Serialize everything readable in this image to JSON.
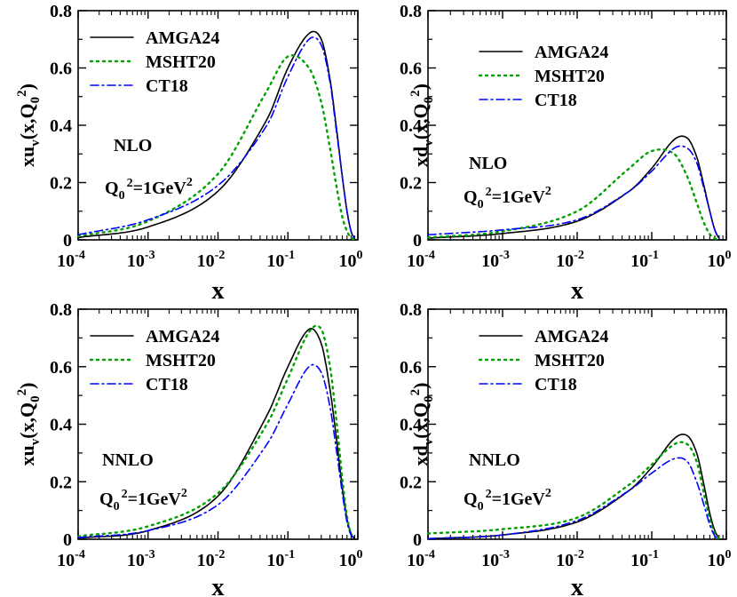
{
  "figure": {
    "series_styles": [
      {
        "name": "AMGA24",
        "color": "#000000",
        "dash": ""
      },
      {
        "name": "MSHT20",
        "color": "#00a000",
        "dash": "2 5"
      },
      {
        "name": "CT18",
        "color": "#0000ff",
        "dash": "9 4 2 4"
      }
    ]
  },
  "chart_data": [
    {
      "type": "line",
      "panel": "top-left",
      "order": "NLO",
      "scale_label": "=1GeV",
      "ylabel": "xu_v(x,Q_0^2)",
      "xlabel": "x",
      "xscale": "log",
      "xlim": [
        0.0001,
        1
      ],
      "ylim": [
        0,
        0.8
      ],
      "xticks": [
        {
          "base": "10",
          "exp": "-4"
        },
        {
          "base": "10",
          "exp": "-3"
        },
        {
          "base": "10",
          "exp": "-2"
        },
        {
          "base": "10",
          "exp": "-1"
        },
        {
          "base": "10",
          "exp": "0"
        }
      ],
      "yticks": [
        "0",
        "0.2",
        "0.4",
        "0.6",
        "0.8"
      ],
      "legend": [
        "AMGA24",
        "MSHT20",
        "CT18"
      ],
      "x": [
        0.0001,
        0.001,
        0.01,
        0.05,
        0.1,
        0.2,
        0.3,
        0.4,
        0.5,
        0.6,
        0.7,
        0.8,
        0.9
      ],
      "series": [
        {
          "name": "AMGA24",
          "values": [
            0.008,
            0.045,
            0.17,
            0.42,
            0.6,
            0.72,
            0.7,
            0.56,
            0.38,
            0.22,
            0.1,
            0.03,
            0.003
          ]
        },
        {
          "name": "MSHT20",
          "values": [
            0.012,
            0.065,
            0.23,
            0.52,
            0.64,
            0.6,
            0.48,
            0.32,
            0.18,
            0.08,
            0.03,
            0.008,
            0.001
          ]
        },
        {
          "name": "CT18",
          "values": [
            0.018,
            0.07,
            0.19,
            0.4,
            0.57,
            0.7,
            0.68,
            0.55,
            0.37,
            0.22,
            0.1,
            0.03,
            0.003
          ]
        }
      ]
    },
    {
      "type": "line",
      "panel": "top-right",
      "order": "NLO",
      "scale_label": "=1GeV",
      "ylabel": "xd_v(x,Q_0^2)",
      "xlabel": "x",
      "xscale": "log",
      "xlim": [
        0.0001,
        1
      ],
      "ylim": [
        0,
        0.8
      ],
      "xticks": [
        {
          "base": "10",
          "exp": "-4"
        },
        {
          "base": "10",
          "exp": "-3"
        },
        {
          "base": "10",
          "exp": "-2"
        },
        {
          "base": "10",
          "exp": "-1"
        },
        {
          "base": "10",
          "exp": "0"
        }
      ],
      "yticks": [
        "0",
        "0.2",
        "0.4",
        "0.6",
        "0.8"
      ],
      "legend": [
        "AMGA24",
        "MSHT20",
        "CT18"
      ],
      "x": [
        0.0001,
        0.001,
        0.01,
        0.05,
        0.1,
        0.2,
        0.3,
        0.4,
        0.5,
        0.6,
        0.7,
        0.8
      ],
      "series": [
        {
          "name": "AMGA24",
          "values": [
            0.006,
            0.022,
            0.065,
            0.17,
            0.25,
            0.35,
            0.355,
            0.29,
            0.19,
            0.1,
            0.035,
            0.005
          ]
        },
        {
          "name": "MSHT20",
          "values": [
            0.008,
            0.03,
            0.1,
            0.25,
            0.31,
            0.3,
            0.22,
            0.13,
            0.06,
            0.02,
            0.005,
            0.001
          ]
        },
        {
          "name": "CT18",
          "values": [
            0.018,
            0.035,
            0.07,
            0.17,
            0.24,
            0.32,
            0.32,
            0.27,
            0.18,
            0.1,
            0.035,
            0.005
          ]
        }
      ]
    },
    {
      "type": "line",
      "panel": "bottom-left",
      "order": "NNLO",
      "scale_label": "=1GeV",
      "ylabel": "xu_v(x,Q_0^2)",
      "xlabel": "x",
      "xscale": "log",
      "xlim": [
        0.0001,
        1
      ],
      "ylim": [
        0,
        0.8
      ],
      "xticks": [
        {
          "base": "10",
          "exp": "-4"
        },
        {
          "base": "10",
          "exp": "-3"
        },
        {
          "base": "10",
          "exp": "-2"
        },
        {
          "base": "10",
          "exp": "-1"
        },
        {
          "base": "10",
          "exp": "0"
        }
      ],
      "yticks": [
        "0",
        "0.2",
        "0.4",
        "0.6",
        "0.8"
      ],
      "legend": [
        "AMGA24",
        "MSHT20",
        "CT18"
      ],
      "x": [
        0.0001,
        0.001,
        0.01,
        0.05,
        0.1,
        0.2,
        0.3,
        0.4,
        0.5,
        0.6,
        0.7,
        0.8,
        0.9
      ],
      "series": [
        {
          "name": "AMGA24",
          "values": [
            0.004,
            0.03,
            0.15,
            0.43,
            0.6,
            0.73,
            0.68,
            0.52,
            0.34,
            0.18,
            0.07,
            0.02,
            0.002
          ]
        },
        {
          "name": "MSHT20",
          "values": [
            0.01,
            0.045,
            0.16,
            0.4,
            0.56,
            0.72,
            0.73,
            0.6,
            0.4,
            0.21,
            0.08,
            0.02,
            0.002
          ]
        },
        {
          "name": "CT18",
          "values": [
            0.006,
            0.03,
            0.12,
            0.33,
            0.47,
            0.6,
            0.58,
            0.46,
            0.3,
            0.16,
            0.06,
            0.015,
            0.002
          ]
        }
      ]
    },
    {
      "type": "line",
      "panel": "bottom-right",
      "order": "NNLO",
      "scale_label": "=1GeV",
      "ylabel": "xd_v(x,Q_0^2)",
      "xlabel": "x",
      "xscale": "log",
      "xlim": [
        0.0001,
        1
      ],
      "ylim": [
        0,
        0.8
      ],
      "xticks": [
        {
          "base": "10",
          "exp": "-4"
        },
        {
          "base": "10",
          "exp": "-3"
        },
        {
          "base": "10",
          "exp": "-2"
        },
        {
          "base": "10",
          "exp": "-1"
        },
        {
          "base": "10",
          "exp": "0"
        }
      ],
      "yticks": [
        "0",
        "0.2",
        "0.4",
        "0.6",
        "0.8"
      ],
      "legend": [
        "AMGA24",
        "MSHT20",
        "CT18"
      ],
      "x": [
        0.0001,
        0.001,
        0.01,
        0.05,
        0.1,
        0.2,
        0.3,
        0.4,
        0.5,
        0.6,
        0.7,
        0.8
      ],
      "series": [
        {
          "name": "AMGA24",
          "values": [
            0.002,
            0.015,
            0.06,
            0.17,
            0.25,
            0.35,
            0.36,
            0.3,
            0.19,
            0.09,
            0.03,
            0.003
          ]
        },
        {
          "name": "MSHT20",
          "values": [
            0.02,
            0.035,
            0.075,
            0.19,
            0.26,
            0.33,
            0.33,
            0.27,
            0.16,
            0.07,
            0.02,
            0.002
          ]
        },
        {
          "name": "CT18",
          "values": [
            0.002,
            0.015,
            0.065,
            0.17,
            0.23,
            0.28,
            0.27,
            0.2,
            0.12,
            0.05,
            0.012,
            0.001
          ]
        }
      ]
    }
  ]
}
